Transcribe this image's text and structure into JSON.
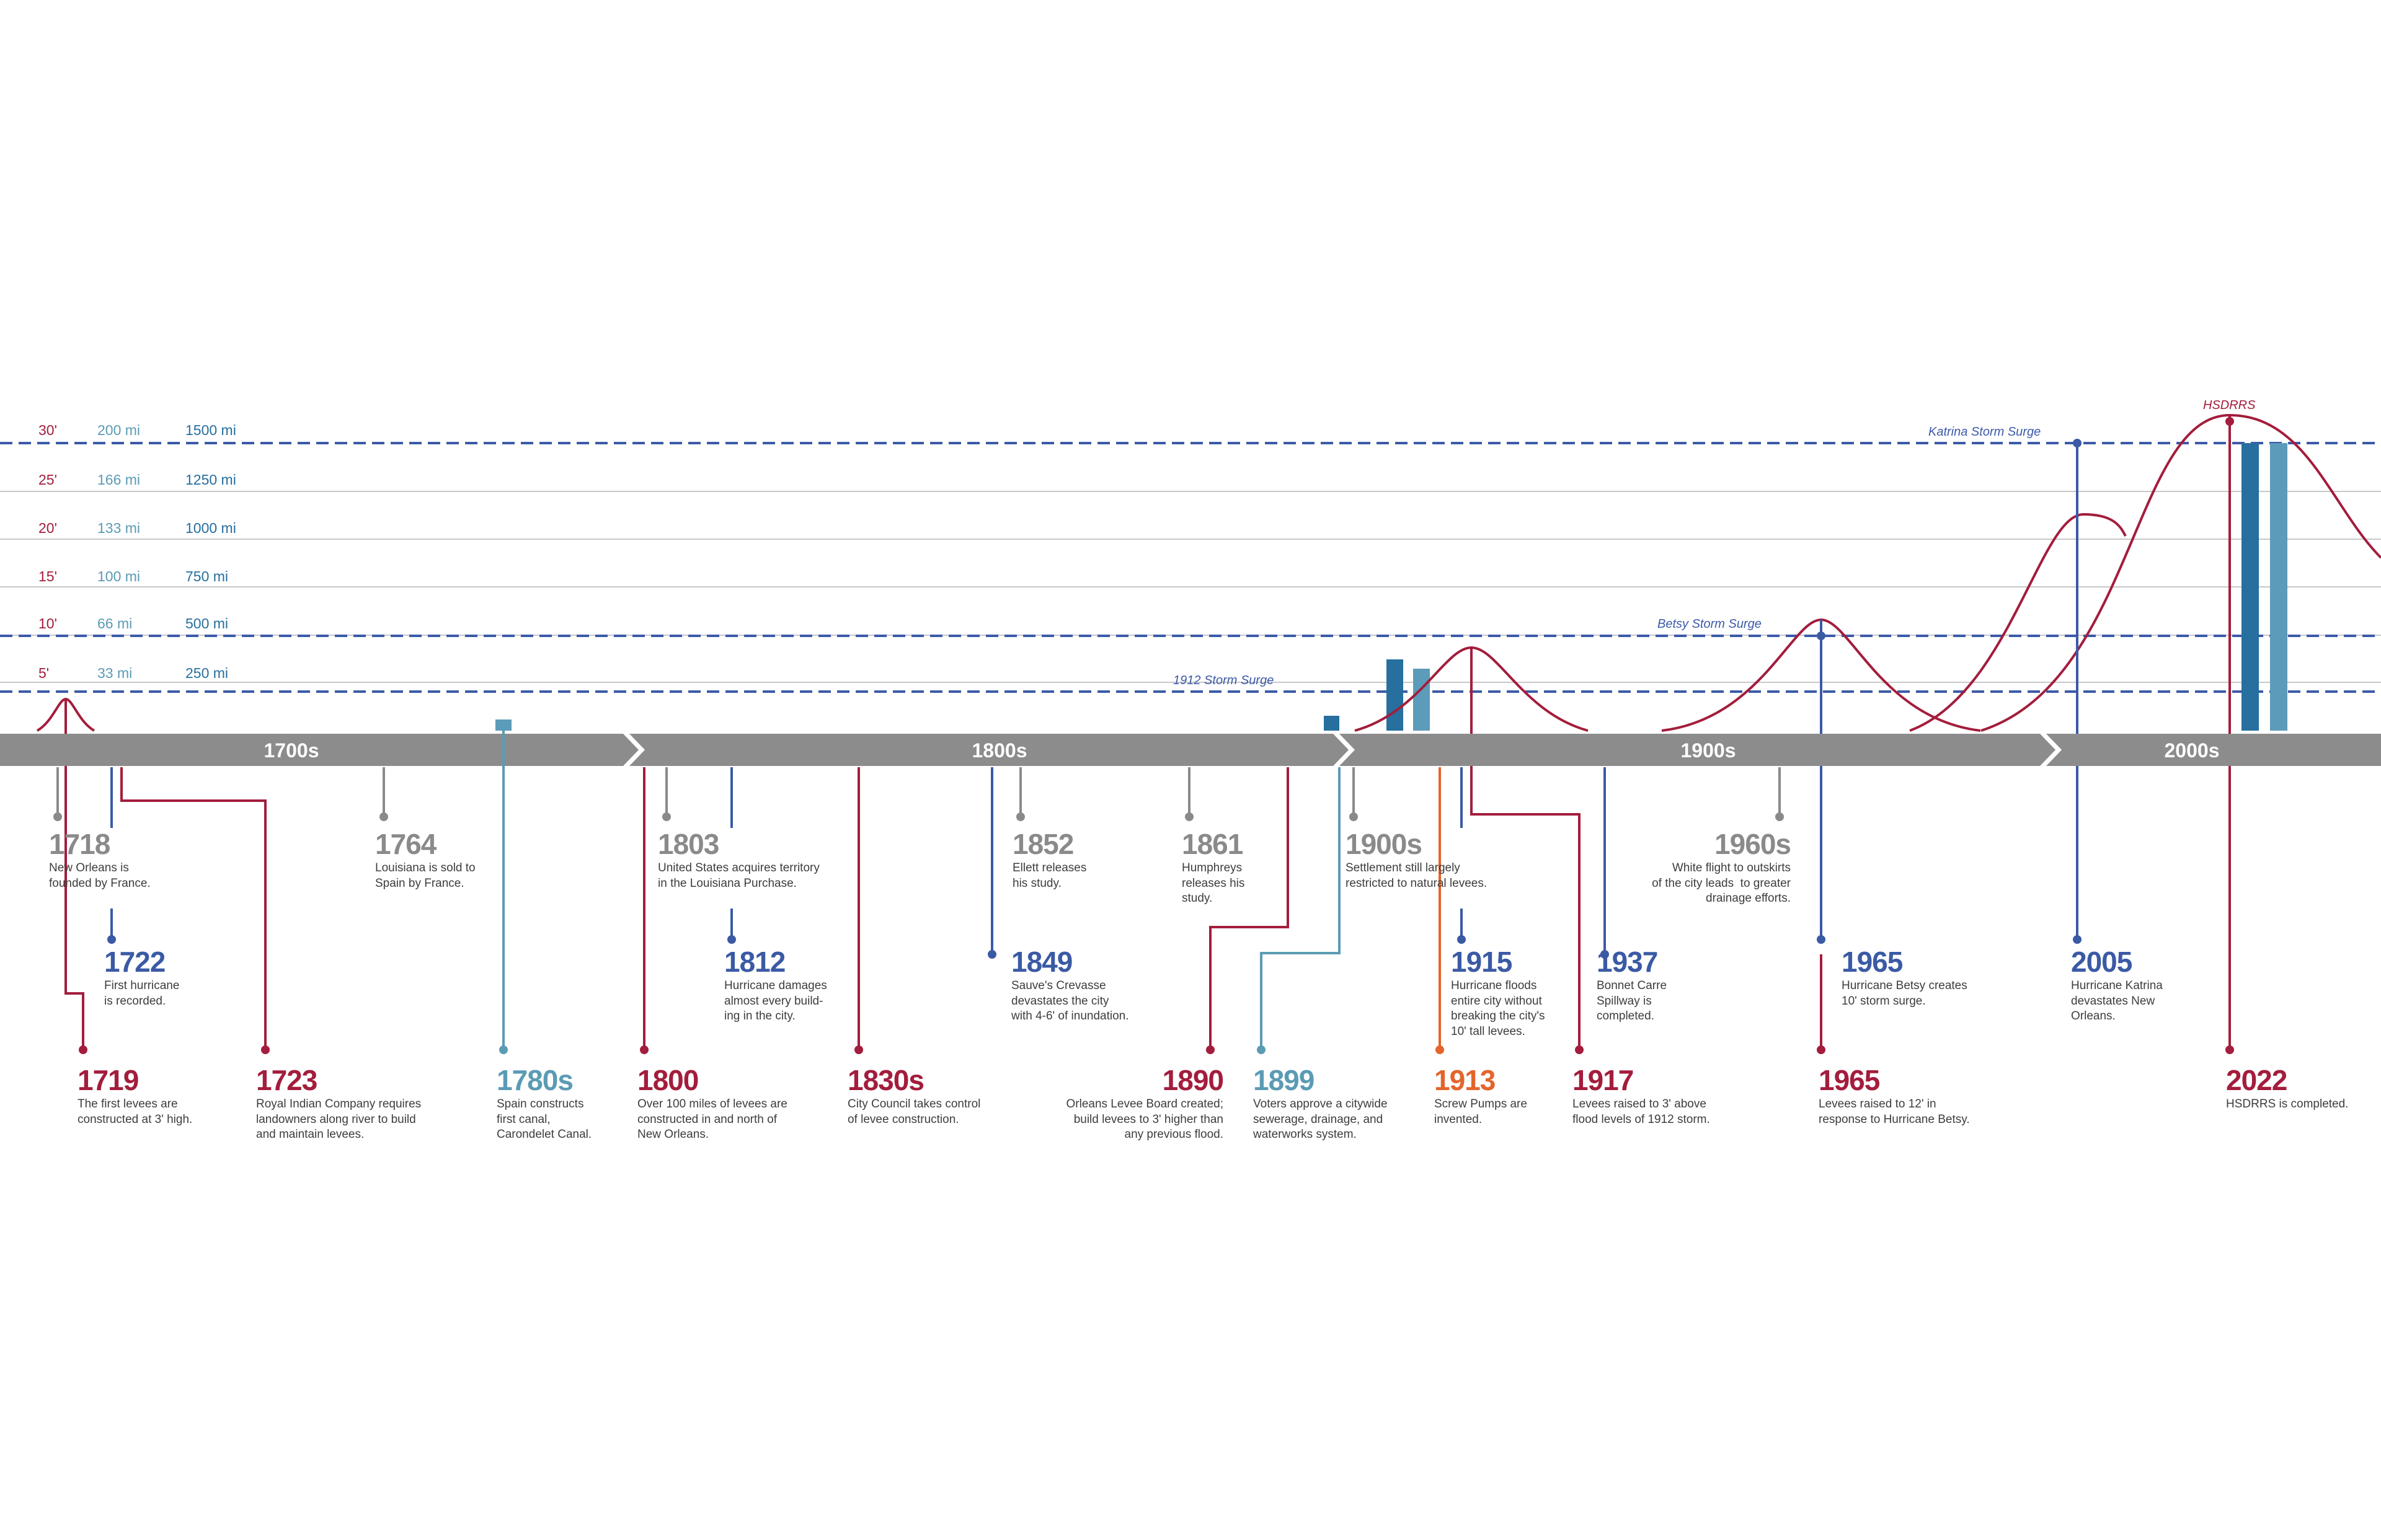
{
  "colors": {
    "red": "#a31d3c",
    "blue": "#3b5aa5",
    "teal": "#5b9bb4",
    "gray": "#8a8a8a",
    "orange": "#e3652b",
    "bar_dark": "#266f9f",
    "bar_light": "#5c9bb9",
    "band": "#8c8c8c"
  },
  "scale": {
    "feet": [
      "30'",
      "25'",
      "20'",
      "15'",
      "10'",
      "5'"
    ],
    "surge_miles": [
      "200 mi",
      "166 mi",
      "133 mi",
      "100 mi",
      "66 mi",
      "33 mi"
    ],
    "area_miles": [
      "1500 mi",
      "1250 mi",
      "1000 mi",
      "750 mi",
      "500 mi",
      "250 mi"
    ]
  },
  "surge_lines": [
    {
      "label": "Katrina Storm Surge",
      "level_ft": 30
    },
    {
      "label": "Betsy Storm Surge",
      "level_ft": 10
    },
    {
      "label": "1912 Storm Surge",
      "level_ft": 4.5
    }
  ],
  "hsdrrs_label": "HSDRRS",
  "eras": [
    "1700s",
    "1800s",
    "1900s",
    "2000s"
  ],
  "hurricane_curves": [
    {
      "year": 1722,
      "peak_ft": 4
    },
    {
      "year": 1915,
      "peak_ft": 9
    },
    {
      "year": 1965,
      "peak_ft": 11
    },
    {
      "year": 2005,
      "peak_ft": 23
    },
    {
      "year": 2022,
      "peak_ft": 33
    }
  ],
  "levee_bars": [
    {
      "year": 1780,
      "height_ft": 1
    },
    {
      "year": 1890,
      "height_ft": 1.5
    },
    {
      "year": 1912,
      "height_ft": 7.5
    },
    {
      "year": 1913,
      "height_ft": 6.5
    },
    {
      "year": 2022,
      "height_ft": 30
    },
    {
      "year": 2022,
      "height_ft": 30
    }
  ],
  "events": [
    {
      "year": "1718",
      "desc": "New Orleans is\nfounded by France.",
      "color": "gray"
    },
    {
      "year": "1722",
      "desc": "First hurricane\nis recorded.",
      "color": "blue"
    },
    {
      "year": "1719",
      "desc": "The first levees are\nconstructed at 3' high.",
      "color": "red"
    },
    {
      "year": "1723",
      "desc": "Royal Indian Company requires\nlandowners along river to build\nand maintain levees.",
      "color": "red"
    },
    {
      "year": "1764",
      "desc": "Louisiana is sold to\nSpain by France.",
      "color": "gray"
    },
    {
      "year": "1780s",
      "desc": "Spain constructs\nfirst canal,\nCarondelet Canal.",
      "color": "teal"
    },
    {
      "year": "1803",
      "desc": "United States acquires territory\nin the Louisiana Purchase.",
      "color": "gray"
    },
    {
      "year": "1800",
      "desc": "Over 100 miles of levees are\nconstructed in and north of\nNew Orleans.",
      "color": "red"
    },
    {
      "year": "1812",
      "desc": "Hurricane damages\nalmost every build-\ning in the city.",
      "color": "blue"
    },
    {
      "year": "1830s",
      "desc": "City Council takes control\nof levee construction.",
      "color": "red"
    },
    {
      "year": "1852",
      "desc": "Ellett releases\nhis study.",
      "color": "gray"
    },
    {
      "year": "1849",
      "desc": "Sauve's Crevasse\ndevastates the city\nwith 4-6' of inundation.",
      "color": "blue"
    },
    {
      "year": "1861",
      "desc": "Humphreys\nreleases his\nstudy.",
      "color": "gray"
    },
    {
      "year": "1890",
      "desc": "Orleans Levee Board created;\nbuild levees to 3' higher than\nany previous flood.",
      "color": "red"
    },
    {
      "year": "1899",
      "desc": "Voters approve a citywide\nsewerage, drainage, and\nwaterworks system.",
      "color": "teal"
    },
    {
      "year": "1900s",
      "desc": "Settlement still largely\nrestricted to natural levees.",
      "color": "gray"
    },
    {
      "year": "1913",
      "desc": "Screw Pumps are\ninvented.",
      "color": "orange"
    },
    {
      "year": "1915",
      "desc": "Hurricane floods\nentire city without\nbreaking the city's\n10' tall levees.",
      "color": "blue"
    },
    {
      "year": "1917",
      "desc": "Levees raised to 3' above\nflood levels of 1912 storm.",
      "color": "red"
    },
    {
      "year": "1937",
      "desc": "Bonnet Carre\nSpillway is\ncompleted.",
      "color": "blue"
    },
    {
      "year": "1960s",
      "desc": "White flight to outskirts\nof the city leads  to greater\ndrainage efforts.",
      "color": "gray"
    },
    {
      "year": "1965",
      "desc": "Hurricane Betsy creates\n10' storm surge.",
      "color": "blue"
    },
    {
      "year": "1965",
      "desc": "Levees raised to 12' in\nresponse to Hurricane Betsy.",
      "color": "red"
    },
    {
      "year": "2005",
      "desc": "Hurricane Katrina\ndevastates New\nOrleans.",
      "color": "blue"
    },
    {
      "year": "2022",
      "desc": "HSDRRS is completed.",
      "color": "red"
    }
  ]
}
